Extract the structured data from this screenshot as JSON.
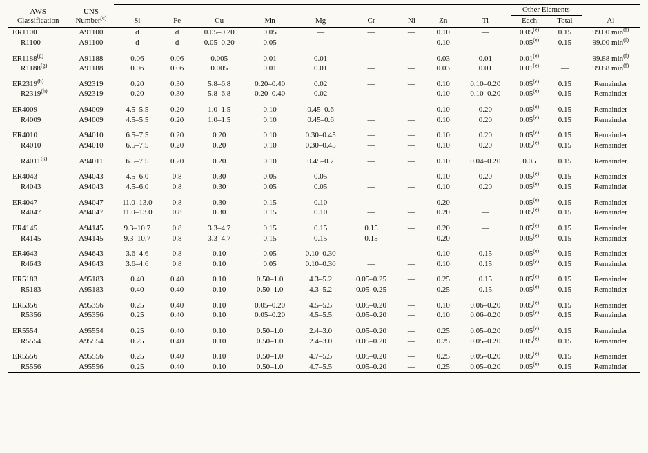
{
  "columns": [
    {
      "key": "aws",
      "label_top": "AWS",
      "label_bot": "Classification"
    },
    {
      "key": "uns",
      "label_top": "UNS",
      "label_bot": "Number",
      "sup_bot": "(c)"
    },
    {
      "key": "si",
      "label_bot": "Si"
    },
    {
      "key": "fe",
      "label_bot": "Fe"
    },
    {
      "key": "cu",
      "label_bot": "Cu"
    },
    {
      "key": "mn",
      "label_bot": "Mn"
    },
    {
      "key": "mg",
      "label_bot": "Mg"
    },
    {
      "key": "cr",
      "label_bot": "Cr"
    },
    {
      "key": "ni",
      "label_bot": "Ni"
    },
    {
      "key": "zn",
      "label_bot": "Zn"
    },
    {
      "key": "ti",
      "label_bot": "Ti"
    },
    {
      "key": "each",
      "label_bot": "Each",
      "group": "other"
    },
    {
      "key": "total",
      "label_bot": "Total",
      "group": "other"
    },
    {
      "key": "al",
      "label_bot": "Al"
    }
  ],
  "other_label": "Other Elements",
  "groups": [
    [
      {
        "aws": "ER1100",
        "uns": "A91100",
        "si": "d",
        "fe": "d",
        "cu": "0.05–0.20",
        "mn": "0.05",
        "mg": "—",
        "cr": "—",
        "ni": "—",
        "zn": "0.10",
        "ti": "—",
        "each": "0.05",
        "each_sup": "(e)",
        "total": "0.15",
        "al": "99.00 min",
        "al_sup": "(f)"
      },
      {
        "aws": "R1100",
        "uns": "A91100",
        "si": "d",
        "fe": "d",
        "cu": "0.05–0.20",
        "mn": "0.05",
        "mg": "—",
        "cr": "—",
        "ni": "—",
        "zn": "0.10",
        "ti": "—",
        "each": "0.05",
        "each_sup": "(e)",
        "total": "0.15",
        "al": "99.00 min",
        "al_sup": "(f)",
        "indent": true
      }
    ],
    [
      {
        "aws": "ER1188",
        "aws_sup": "(g)",
        "uns": "A91188",
        "si": "0.06",
        "fe": "0.06",
        "cu": "0.005",
        "mn": "0.01",
        "mg": "0.01",
        "cr": "—",
        "ni": "—",
        "zn": "0.03",
        "ti": "0.01",
        "each": "0.01",
        "each_sup": "(e)",
        "total": "—",
        "al": "99.88 min",
        "al_sup": "(f)"
      },
      {
        "aws": "R1188",
        "aws_sup": "(g)",
        "uns": "A91188",
        "si": "0.06",
        "fe": "0.06",
        "cu": "0.005",
        "mn": "0.01",
        "mg": "0.01",
        "cr": "—",
        "ni": "—",
        "zn": "0.03",
        "ti": "0.01",
        "each": "0.01",
        "each_sup": "(e)",
        "total": "—",
        "al": "99.88 min",
        "al_sup": "(f)",
        "indent": true
      }
    ],
    [
      {
        "aws": "ER2319",
        "aws_sup": "(h)",
        "uns": "A92319",
        "si": "0.20",
        "fe": "0.30",
        "cu": "5.8–6.8",
        "mn": "0.20–0.40",
        "mg": "0.02",
        "cr": "—",
        "ni": "—",
        "zn": "0.10",
        "ti": "0.10–0.20",
        "each": "0.05",
        "each_sup": "(e)",
        "total": "0.15",
        "al": "Remainder"
      },
      {
        "aws": "R2319",
        "aws_sup": "(h)",
        "uns": "A92319",
        "si": "0.20",
        "fe": "0.30",
        "cu": "5.8–6.8",
        "mn": "0.20–0.40",
        "mg": "0.02",
        "cr": "—",
        "ni": "—",
        "zn": "0.10",
        "ti": "0.10–0.20",
        "each": "0.05",
        "each_sup": "(e)",
        "total": "0.15",
        "al": "Remainder",
        "indent": true
      }
    ],
    [
      {
        "aws": "ER4009",
        "uns": "A94009",
        "si": "4.5–5.5",
        "fe": "0.20",
        "cu": "1.0–1.5",
        "mn": "0.10",
        "mg": "0.45–0.6",
        "cr": "—",
        "ni": "—",
        "zn": "0.10",
        "ti": "0.20",
        "each": "0.05",
        "each_sup": "(e)",
        "total": "0.15",
        "al": "Remainder"
      },
      {
        "aws": "R4009",
        "uns": "A94009",
        "si": "4.5–5.5",
        "fe": "0.20",
        "cu": "1.0–1.5",
        "mn": "0.10",
        "mg": "0.45–0.6",
        "cr": "—",
        "ni": "—",
        "zn": "0.10",
        "ti": "0.20",
        "each": "0.05",
        "each_sup": "(e)",
        "total": "0.15",
        "al": "Remainder",
        "indent": true
      }
    ],
    [
      {
        "aws": "ER4010",
        "uns": "A94010",
        "si": "6.5–7.5",
        "fe": "0.20",
        "cu": "0.20",
        "mn": "0.10",
        "mg": "0.30–0.45",
        "cr": "—",
        "ni": "—",
        "zn": "0.10",
        "ti": "0.20",
        "each": "0.05",
        "each_sup": "(e)",
        "total": "0.15",
        "al": "Remainder"
      },
      {
        "aws": "R4010",
        "uns": "A94010",
        "si": "6.5–7.5",
        "fe": "0.20",
        "cu": "0.20",
        "mn": "0.10",
        "mg": "0.30–0.45",
        "cr": "—",
        "ni": "—",
        "zn": "0.10",
        "ti": "0.20",
        "each": "0.05",
        "each_sup": "(e)",
        "total": "0.15",
        "al": "Remainder",
        "indent": true
      }
    ],
    [
      {
        "aws": "R4011",
        "aws_sup": "(k)",
        "uns": "A94011",
        "si": "6.5–7.5",
        "fe": "0.20",
        "cu": "0.20",
        "mn": "0.10",
        "mg": "0.45–0.7",
        "cr": "—",
        "ni": "—",
        "zn": "0.10",
        "ti": "0.04–0.20",
        "each": "0.05",
        "total": "0.15",
        "al": "Remainder",
        "indent": true
      }
    ],
    [
      {
        "aws": "ER4043",
        "uns": "A94043",
        "si": "4.5–6.0",
        "fe": "0.8",
        "cu": "0.30",
        "mn": "0.05",
        "mg": "0.05",
        "cr": "—",
        "ni": "—",
        "zn": "0.10",
        "ti": "0.20",
        "each": "0.05",
        "each_sup": "(e)",
        "total": "0.15",
        "al": "Remainder"
      },
      {
        "aws": "R4043",
        "uns": "A94043",
        "si": "4.5–6.0",
        "fe": "0.8",
        "cu": "0.30",
        "mn": "0.05",
        "mg": "0.05",
        "cr": "—",
        "ni": "—",
        "zn": "0.10",
        "ti": "0.20",
        "each": "0.05",
        "each_sup": "(e)",
        "total": "0.15",
        "al": "Remainder",
        "indent": true
      }
    ],
    [
      {
        "aws": "ER4047",
        "uns": "A94047",
        "si": "11.0–13.0",
        "fe": "0.8",
        "cu": "0.30",
        "mn": "0.15",
        "mg": "0.10",
        "cr": "—",
        "ni": "—",
        "zn": "0.20",
        "ti": "—",
        "each": "0.05",
        "each_sup": "(e)",
        "total": "0.15",
        "al": "Remainder"
      },
      {
        "aws": "R4047",
        "uns": "A94047",
        "si": "11.0–13.0",
        "fe": "0.8",
        "cu": "0.30",
        "mn": "0.15",
        "mg": "0.10",
        "cr": "—",
        "ni": "—",
        "zn": "0.20",
        "ti": "—",
        "each": "0.05",
        "each_sup": "(e)",
        "total": "0.15",
        "al": "Remainder",
        "indent": true
      }
    ],
    [
      {
        "aws": "ER4145",
        "uns": "A94145",
        "si": "9.3–10.7",
        "fe": "0.8",
        "cu": "3.3–4.7",
        "mn": "0.15",
        "mg": "0.15",
        "cr": "0.15",
        "ni": "—",
        "zn": "0.20",
        "ti": "—",
        "each": "0.05",
        "each_sup": "(e)",
        "total": "0.15",
        "al": "Remainder"
      },
      {
        "aws": "R4145",
        "uns": "A94145",
        "si": "9.3–10.7",
        "fe": "0.8",
        "cu": "3.3–4.7",
        "mn": "0.15",
        "mg": "0.15",
        "cr": "0.15",
        "ni": "—",
        "zn": "0.20",
        "ti": "—",
        "each": "0.05",
        "each_sup": "(e)",
        "total": "0.15",
        "al": "Remainder",
        "indent": true
      }
    ],
    [
      {
        "aws": "ER4643",
        "uns": "A94643",
        "si": "3.6–4.6",
        "fe": "0.8",
        "cu": "0.10",
        "mn": "0.05",
        "mg": "0.10–0.30",
        "cr": "—",
        "ni": "—",
        "zn": "0.10",
        "ti": "0.15",
        "each": "0.05",
        "each_sup": "(e)",
        "total": "0.15",
        "al": "Remainder"
      },
      {
        "aws": "R4643",
        "uns": "A94643",
        "si": "3.6–4.6",
        "fe": "0.8",
        "cu": "0.10",
        "mn": "0.05",
        "mg": "0.10–0.30",
        "cr": "—",
        "ni": "—",
        "zn": "0.10",
        "ti": "0.15",
        "each": "0.05",
        "each_sup": "(e)",
        "total": "0.15",
        "al": "Remainder",
        "indent": true
      }
    ],
    [
      {
        "aws": "ER5183",
        "uns": "A95183",
        "si": "0.40",
        "fe": "0.40",
        "cu": "0.10",
        "mn": "0.50–1.0",
        "mg": "4.3–5.2",
        "cr": "0.05–0.25",
        "ni": "—",
        "zn": "0.25",
        "ti": "0.15",
        "each": "0.05",
        "each_sup": "(e)",
        "total": "0.15",
        "al": "Remainder"
      },
      {
        "aws": "R5183",
        "uns": "A95183",
        "si": "0.40",
        "fe": "0.40",
        "cu": "0.10",
        "mn": "0.50–1.0",
        "mg": "4.3–5.2",
        "cr": "0.05–0.25",
        "ni": "—",
        "zn": "0.25",
        "ti": "0.15",
        "each": "0.05",
        "each_sup": "(e)",
        "total": "0.15",
        "al": "Remainder",
        "indent": true
      }
    ],
    [
      {
        "aws": "ER5356",
        "uns": "A95356",
        "si": "0.25",
        "fe": "0.40",
        "cu": "0.10",
        "mn": "0.05–0.20",
        "mg": "4.5–5.5",
        "cr": "0.05–0.20",
        "ni": "—",
        "zn": "0.10",
        "ti": "0.06–0.20",
        "each": "0.05",
        "each_sup": "(e)",
        "total": "0.15",
        "al": "Remainder"
      },
      {
        "aws": "R5356",
        "uns": "A95356",
        "si": "0.25",
        "fe": "0.40",
        "cu": "0.10",
        "mn": "0.05–0.20",
        "mg": "4.5–5.5",
        "cr": "0.05–0.20",
        "ni": "—",
        "zn": "0.10",
        "ti": "0.06–0.20",
        "each": "0.05",
        "each_sup": "(e)",
        "total": "0.15",
        "al": "Remainder",
        "indent": true
      }
    ],
    [
      {
        "aws": "ER5554",
        "uns": "A95554",
        "si": "0.25",
        "fe": "0.40",
        "cu": "0.10",
        "mn": "0.50–1.0",
        "mg": "2.4–3.0",
        "cr": "0.05–0.20",
        "ni": "—",
        "zn": "0.25",
        "ti": "0.05–0.20",
        "each": "0.05",
        "each_sup": "(e)",
        "total": "0.15",
        "al": "Remainder"
      },
      {
        "aws": "R5554",
        "uns": "A95554",
        "si": "0.25",
        "fe": "0.40",
        "cu": "0.10",
        "mn": "0.50–1.0",
        "mg": "2.4–3.0",
        "cr": "0.05–0.20",
        "ni": "—",
        "zn": "0.25",
        "ti": "0.05–0.20",
        "each": "0.05",
        "each_sup": "(e)",
        "total": "0.15",
        "al": "Remainder",
        "indent": true
      }
    ],
    [
      {
        "aws": "ER5556",
        "uns": "A95556",
        "si": "0.25",
        "fe": "0.40",
        "cu": "0.10",
        "mn": "0.50–1.0",
        "mg": "4.7–5.5",
        "cr": "0.05–0.20",
        "ni": "—",
        "zn": "0.25",
        "ti": "0.05–0.20",
        "each": "0.05",
        "each_sup": "(e)",
        "total": "0.15",
        "al": "Remainder"
      },
      {
        "aws": "R5556",
        "uns": "A95556",
        "si": "0.25",
        "fe": "0.40",
        "cu": "0.10",
        "mn": "0.50–1.0",
        "mg": "4.7–5.5",
        "cr": "0.05–0.20",
        "ni": "—",
        "zn": "0.25",
        "ti": "0.05–0.20",
        "each": "0.05",
        "each_sup": "(e)",
        "total": "0.15",
        "al": "Remainder",
        "indent": true
      }
    ]
  ]
}
